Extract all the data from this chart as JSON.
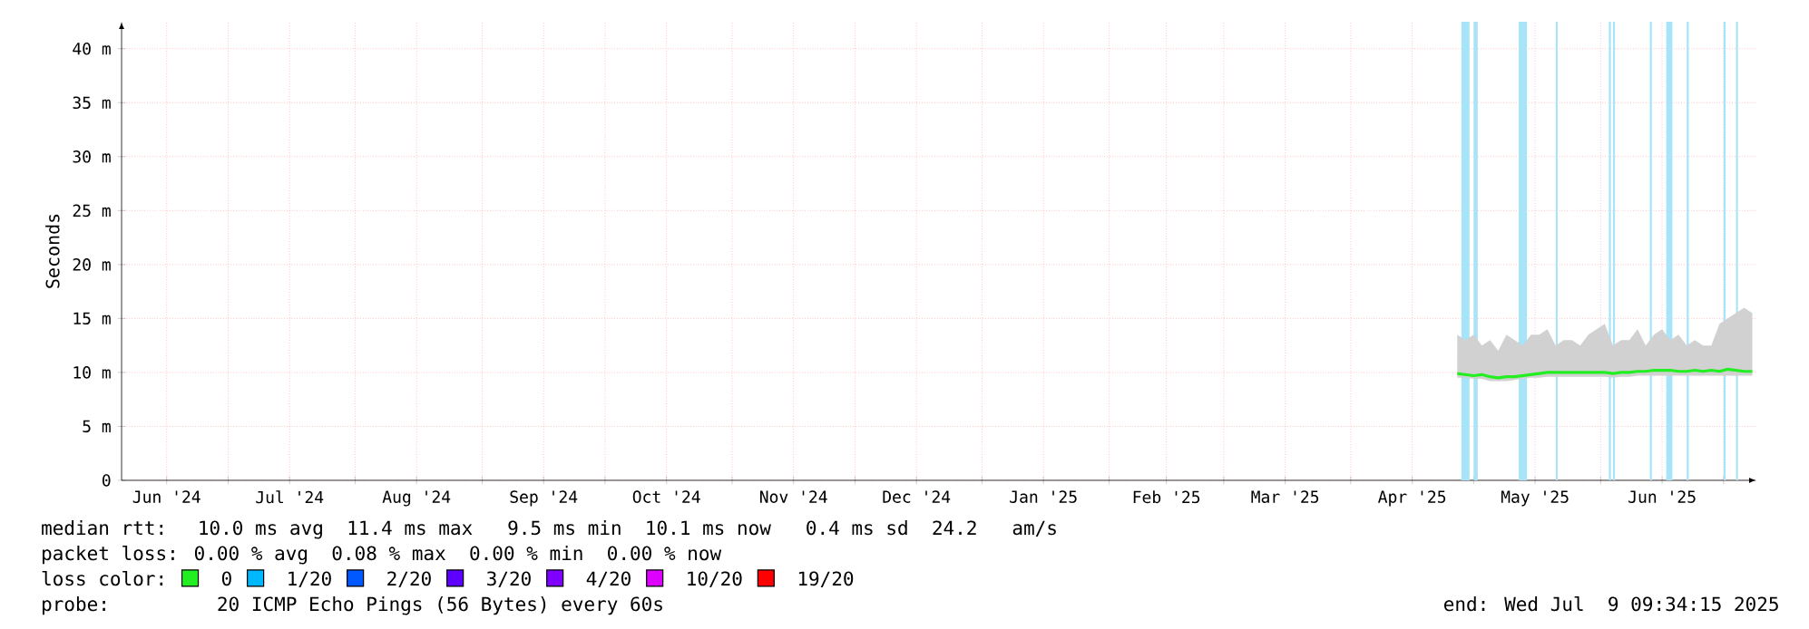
{
  "chart_data": {
    "type": "line",
    "ylabel": "Seconds",
    "legend_title": "loss color:",
    "legend": "bottom",
    "grid": true,
    "marker": "none",
    "line_style": "solid",
    "xlim": [
      "2024-06-05",
      "2025-07-09"
    ],
    "xticks": [
      {
        "value": "2024-06-16",
        "label": "Jun '24"
      },
      {
        "value": "2024-07-01",
        "label": null
      },
      {
        "value": "2024-07-16",
        "label": "Jul '24"
      },
      {
        "value": "2024-08-01",
        "label": null
      },
      {
        "value": "2024-08-16",
        "label": "Aug '24"
      },
      {
        "value": "2024-09-01",
        "label": null
      },
      {
        "value": "2024-09-16",
        "label": "Sep '24"
      },
      {
        "value": "2024-10-01",
        "label": null
      },
      {
        "value": "2024-10-16",
        "label": "Oct '24"
      },
      {
        "value": "2024-11-01",
        "label": null
      },
      {
        "value": "2024-11-16",
        "label": "Nov '24"
      },
      {
        "value": "2024-12-01",
        "label": null
      },
      {
        "value": "2024-12-16",
        "label": "Dec '24"
      },
      {
        "value": "2025-01-01",
        "label": null
      },
      {
        "value": "2025-01-16",
        "label": "Jan '25"
      },
      {
        "value": "2025-02-01",
        "label": null
      },
      {
        "value": "2025-02-15",
        "label": "Feb '25"
      },
      {
        "value": "2025-03-01",
        "label": null
      },
      {
        "value": "2025-03-16",
        "label": "Mar '25"
      },
      {
        "value": "2025-04-01",
        "label": null
      },
      {
        "value": "2025-04-16",
        "label": "Apr '25"
      },
      {
        "value": "2025-05-01",
        "label": null
      },
      {
        "value": "2025-05-16",
        "label": "May '25"
      },
      {
        "value": "2025-06-01",
        "label": null
      },
      {
        "value": "2025-06-16",
        "label": "Jun '25"
      },
      {
        "value": "2025-07-01",
        "label": null
      }
    ],
    "ylim": [
      0,
      42.5
    ],
    "yticks": [
      0,
      {
        "value": 5,
        "label": "5 m"
      },
      {
        "value": 10,
        "label": "10 m"
      },
      {
        "value": 15,
        "label": "15 m"
      },
      {
        "value": 20,
        "label": "20 m"
      },
      {
        "value": 25,
        "label": "25 m"
      },
      {
        "value": 30,
        "label": "30 m"
      },
      {
        "value": 35,
        "label": "35 m"
      },
      {
        "value": 40,
        "label": "40 m"
      }
    ],
    "bands": [
      {
        "axis": "x",
        "from": "2025-04-28",
        "to": "2025-04-30",
        "color": "#a8e4f8"
      },
      {
        "axis": "x",
        "from": "2025-05-01",
        "to": "2025-05-02",
        "color": "#a8e4f8"
      },
      {
        "axis": "x",
        "from": "2025-05-12",
        "to": "2025-05-14",
        "color": "#a8e4f8"
      },
      {
        "axis": "x",
        "from": "2025-05-21",
        "to": "2025-05-21T12:00",
        "color": "#a8e4f8"
      },
      {
        "axis": "x",
        "from": "2025-06-03",
        "to": "2025-06-03T12:00",
        "color": "#a8e4f8"
      },
      {
        "axis": "x",
        "from": "2025-06-04",
        "to": "2025-06-04T12:00",
        "color": "#a8e4f8"
      },
      {
        "axis": "x",
        "from": "2025-06-13",
        "to": "2025-06-13T12:00",
        "color": "#a8e4f8"
      },
      {
        "axis": "x",
        "from": "2025-06-17",
        "to": "2025-06-18T12:00",
        "color": "#a8e4f8"
      },
      {
        "axis": "x",
        "from": "2025-06-22",
        "to": "2025-06-22T12:00",
        "color": "#a8e4f8"
      },
      {
        "axis": "x",
        "from": "2025-07-01",
        "to": "2025-07-01T12:00",
        "color": "#a8e4f8"
      },
      {
        "axis": "x",
        "from": "2025-07-04",
        "to": "2025-07-04T12:00",
        "color": "#a8e4f8"
      }
    ],
    "x": [
      "2025-04-27",
      "2025-04-29",
      "2025-05-01",
      "2025-05-03",
      "2025-05-05",
      "2025-05-07",
      "2025-05-09",
      "2025-05-11",
      "2025-05-13",
      "2025-05-15",
      "2025-05-17",
      "2025-05-19",
      "2025-05-21",
      "2025-05-23",
      "2025-05-25",
      "2025-05-27",
      "2025-05-29",
      "2025-05-31",
      "2025-06-02",
      "2025-06-04",
      "2025-06-06",
      "2025-06-08",
      "2025-06-10",
      "2025-06-12",
      "2025-06-14",
      "2025-06-16",
      "2025-06-18",
      "2025-06-20",
      "2025-06-22",
      "2025-06-24",
      "2025-06-26",
      "2025-06-28",
      "2025-06-30",
      "2025-07-02",
      "2025-07-04",
      "2025-07-06",
      "2025-07-08"
    ],
    "series": [
      {
        "name": "0",
        "color": "#22ee22",
        "values": [
          9.9,
          9.8,
          9.7,
          9.8,
          9.6,
          9.5,
          9.6,
          9.6,
          9.7,
          9.8,
          9.9,
          10,
          10,
          10,
          10,
          10,
          10,
          10,
          10,
          9.9,
          10,
          10,
          10.1,
          10.1,
          10.2,
          10.2,
          10.2,
          10.1,
          10.1,
          10.2,
          10.1,
          10.2,
          10.1,
          10.3,
          10.2,
          10.1,
          10.1
        ],
        "lower": [
          9.5,
          9.5,
          9.4,
          9.4,
          9.2,
          9.2,
          9.2,
          9.3,
          9.4,
          9.5,
          9.5,
          9.6,
          9.6,
          9.6,
          9.6,
          9.6,
          9.6,
          9.6,
          9.6,
          9.5,
          9.6,
          9.6,
          9.7,
          9.7,
          9.7,
          9.7,
          9.7,
          9.7,
          9.7,
          9.7,
          9.7,
          9.7,
          9.7,
          9.7,
          9.7,
          9.7,
          9.7
        ],
        "upper": [
          13.5,
          13,
          13.5,
          12.5,
          13,
          12,
          13.5,
          13,
          12.5,
          13.5,
          13.5,
          14,
          12.5,
          13,
          13,
          12.5,
          13.5,
          14,
          14.5,
          12.5,
          13,
          13,
          14,
          12.5,
          13.5,
          14,
          13,
          13.5,
          12.5,
          13,
          12.5,
          12.5,
          14.5,
          15,
          15.5,
          16,
          15.5
        ]
      },
      {
        "name": "1/20",
        "color": "#00b8ff",
        "values": [
          null,
          null,
          null,
          null,
          null,
          null,
          null,
          null,
          null,
          null,
          null,
          null,
          null,
          null,
          null,
          null,
          null,
          null,
          null,
          null,
          null,
          null,
          null,
          null,
          null,
          null,
          null,
          null,
          null,
          null,
          null,
          null,
          null,
          null,
          null,
          null,
          null
        ]
      },
      {
        "name": "2/20",
        "color": "#0059ff",
        "values": [
          null,
          null,
          null,
          null,
          null,
          null,
          null,
          null,
          null,
          null,
          null,
          null,
          null,
          null,
          null,
          null,
          null,
          null,
          null,
          null,
          null,
          null,
          null,
          null,
          null,
          null,
          null,
          null,
          null,
          null,
          null,
          null,
          null,
          null,
          null,
          null,
          null
        ]
      },
      {
        "name": "3/20",
        "color": "#5e00ff",
        "values": [
          null,
          null,
          null,
          null,
          null,
          null,
          null,
          null,
          null,
          null,
          null,
          null,
          null,
          null,
          null,
          null,
          null,
          null,
          null,
          null,
          null,
          null,
          null,
          null,
          null,
          null,
          null,
          null,
          null,
          null,
          null,
          null,
          null,
          null,
          null,
          null,
          null
        ]
      },
      {
        "name": "4/20",
        "color": "#7e00ff",
        "values": [
          null,
          null,
          null,
          null,
          null,
          null,
          null,
          null,
          null,
          null,
          null,
          null,
          null,
          null,
          null,
          null,
          null,
          null,
          null,
          null,
          null,
          null,
          null,
          null,
          null,
          null,
          null,
          null,
          null,
          null,
          null,
          null,
          null,
          null,
          null,
          null,
          null
        ]
      },
      {
        "name": "10/20",
        "color": "#dd00ff",
        "values": [
          null,
          null,
          null,
          null,
          null,
          null,
          null,
          null,
          null,
          null,
          null,
          null,
          null,
          null,
          null,
          null,
          null,
          null,
          null,
          null,
          null,
          null,
          null,
          null,
          null,
          null,
          null,
          null,
          null,
          null,
          null,
          null,
          null,
          null,
          null,
          null,
          null
        ]
      },
      {
        "name": "19/20",
        "color": "#ff0000",
        "values": [
          null,
          null,
          null,
          null,
          null,
          null,
          null,
          null,
          null,
          null,
          null,
          null,
          null,
          null,
          null,
          null,
          null,
          null,
          null,
          null,
          null,
          null,
          null,
          null,
          null,
          null,
          null,
          null,
          null,
          null,
          null,
          null,
          null,
          null,
          null,
          null,
          null
        ]
      }
    ],
    "annotations": [
      "median rtt:  10.0 ms avg  11.4 ms max   9.5 ms min  10.1 ms now   0.4 ms sd  24.2   am/s",
      "packet loss: 0.00 % avg  0.08 % max  0.00 % min  0.00 % now",
      "probe:       20 ICMP Echo Pings (56 Bytes) every 60s",
      "end: Wed Jul  9 09:34:15 2025"
    ]
  }
}
